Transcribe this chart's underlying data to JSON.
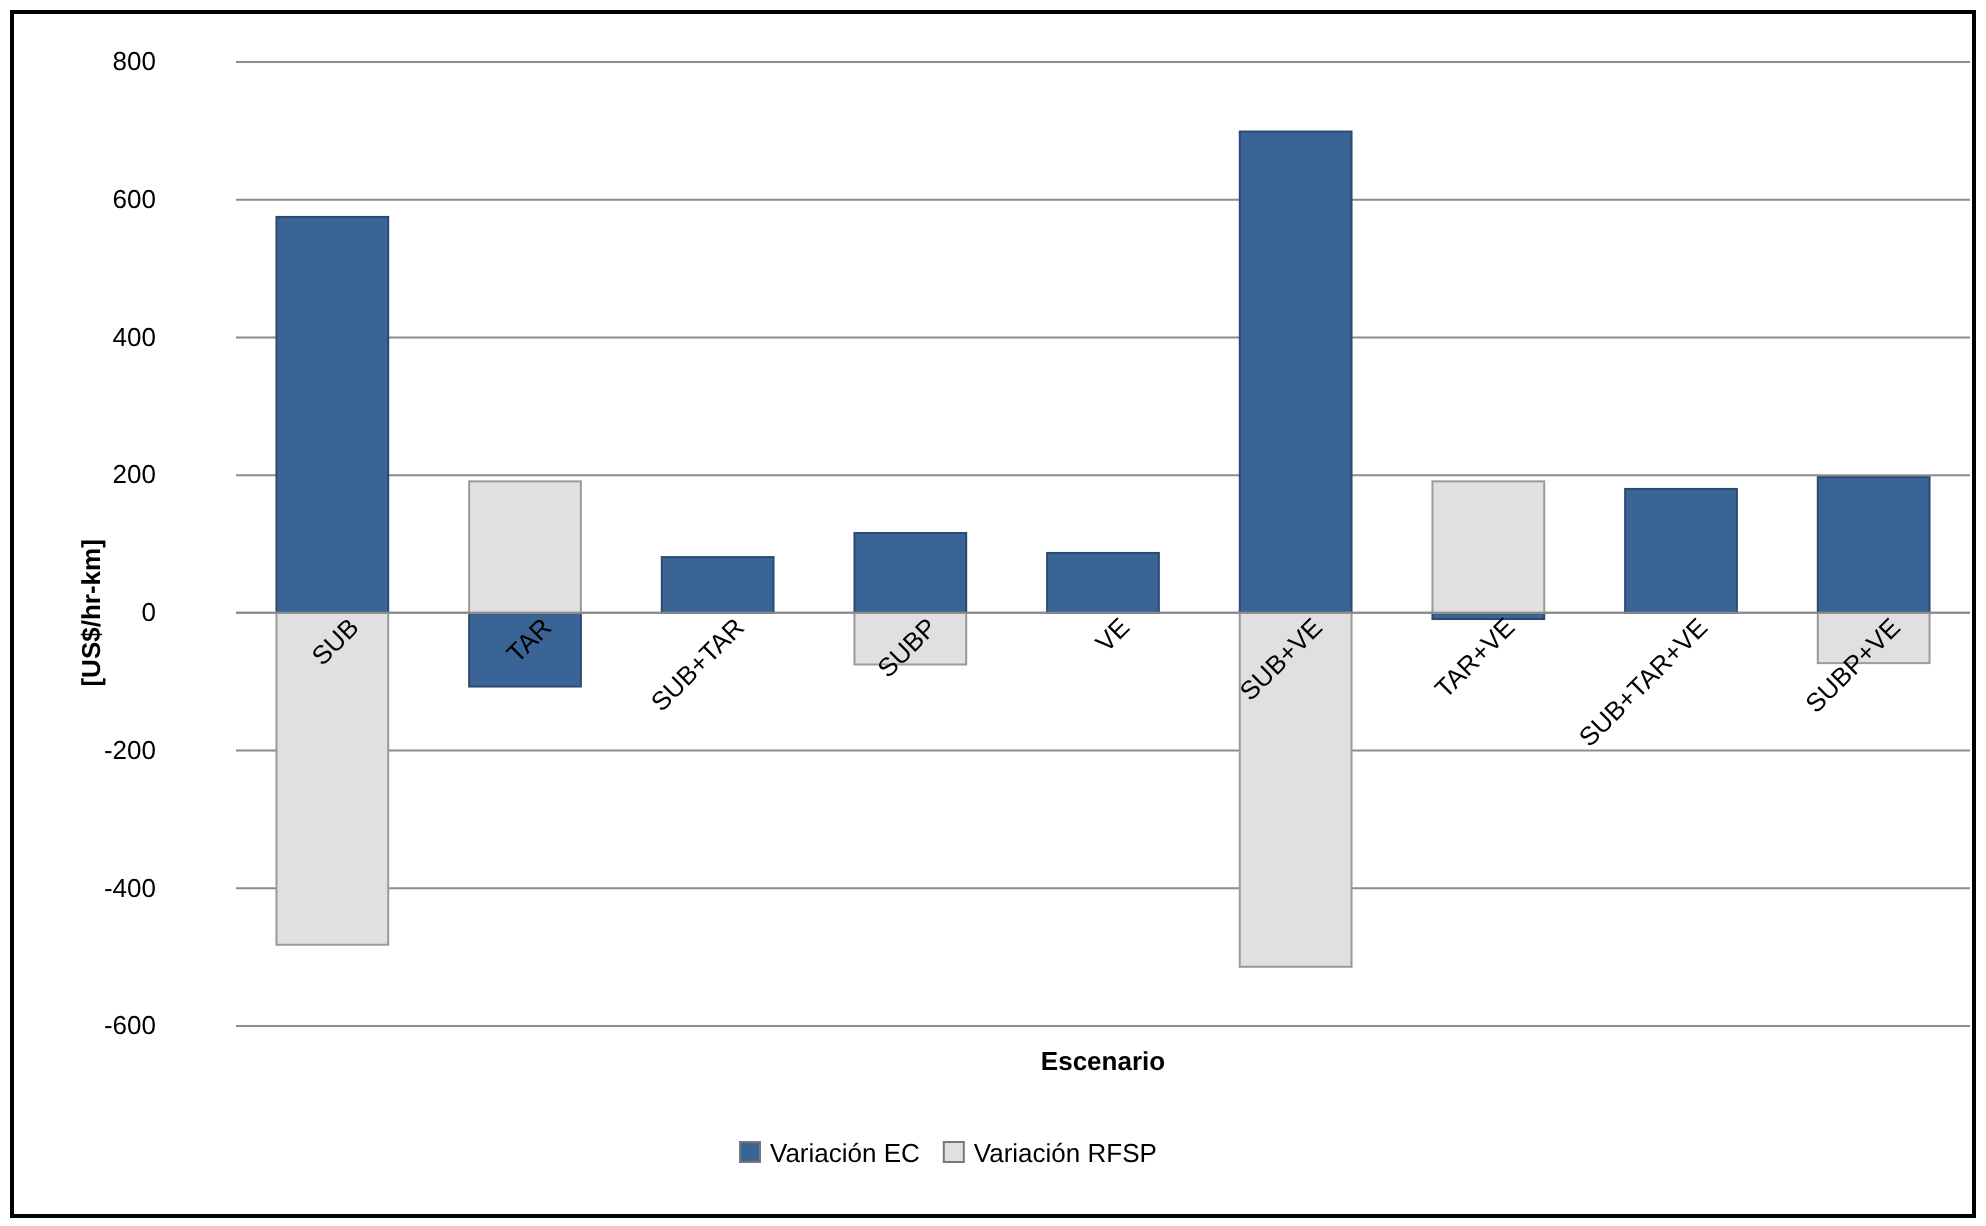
{
  "chart_data": {
    "type": "bar",
    "xlabel": "Escenario",
    "ylabel": "[US$/hr-km]",
    "categories": [
      "SUB",
      "TAR",
      "SUB+TAR",
      "SUBP",
      "VE",
      "SUB+VE",
      "TAR+VE",
      "SUB+TAR+VE",
      "SUBP+VE"
    ],
    "series": [
      {
        "name": "Variación EC",
        "color": "#3b6496",
        "values": [
          575,
          -107,
          81,
          116,
          87,
          699,
          -9,
          180,
          197
        ]
      },
      {
        "name": "Variación RFSP",
        "color": "#e0e0e0",
        "values": [
          -482,
          191,
          null,
          -75,
          null,
          -514,
          191,
          null,
          -73
        ]
      }
    ],
    "ylim": [
      -600,
      800
    ],
    "yticks": [
      -600,
      -400,
      -200,
      0,
      200,
      400,
      600,
      800
    ],
    "grid": "y",
    "legend": "bottom",
    "stacked": true
  }
}
